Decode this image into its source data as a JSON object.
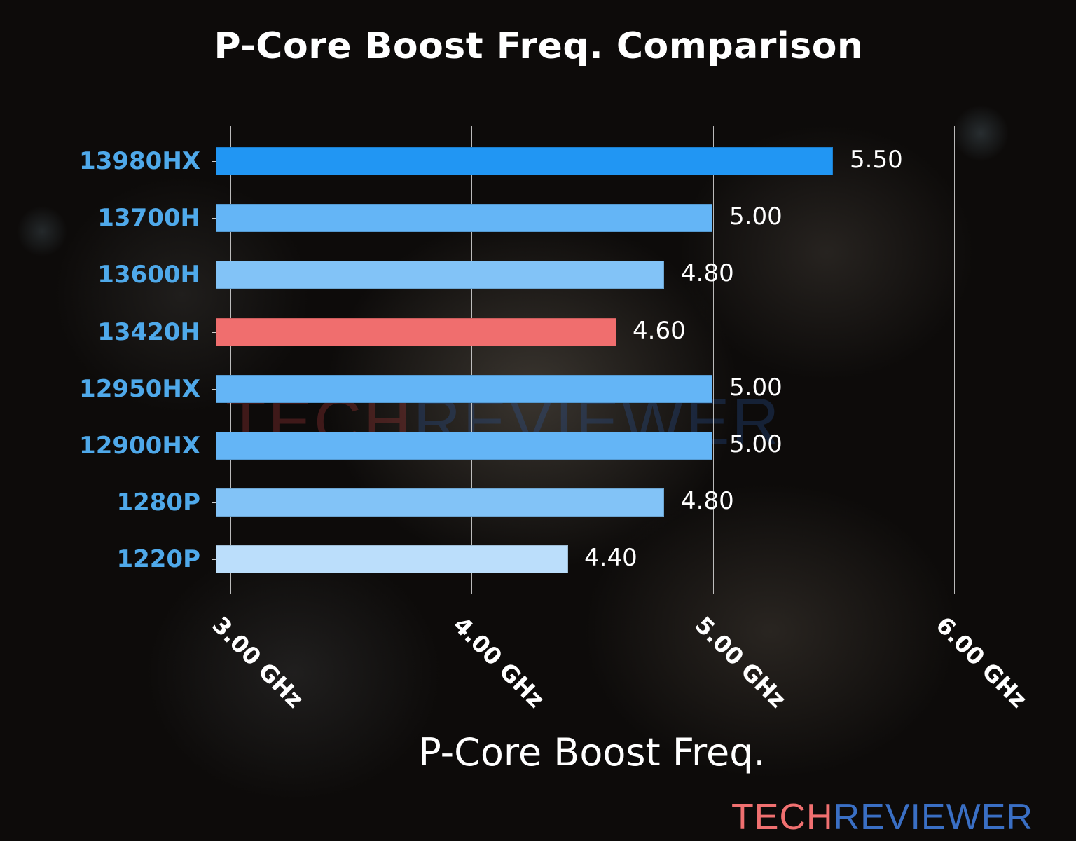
{
  "chart_data": {
    "type": "bar",
    "orientation": "horizontal",
    "title": "P-Core Boost Freq. Comparison",
    "xlabel": "P-Core Boost Freq.",
    "ylabel": "",
    "categories": [
      "13980HX",
      "13700H",
      "13600H",
      "13420H",
      "12950HX",
      "12900HX",
      "1280P",
      "1220P"
    ],
    "values": [
      5.5,
      5.0,
      4.8,
      4.6,
      5.0,
      5.0,
      4.8,
      4.4
    ],
    "value_labels": [
      "5.50",
      "5.00",
      "4.80",
      "4.60",
      "5.00",
      "5.00",
      "4.80",
      "4.40"
    ],
    "bar_colors": [
      "#2196F3",
      "#64B5F6",
      "#82C3F7",
      "#F06E6E",
      "#64B5F6",
      "#64B5F6",
      "#82C3F7",
      "#BBDEFB"
    ],
    "highlight": "13420H",
    "x_ticks": [
      3.0,
      4.0,
      5.0,
      6.0
    ],
    "x_tick_labels": [
      "3.00 GHz",
      "4.00 GHz",
      "5.00 GHz",
      "6.00 GHz"
    ],
    "xlim": [
      2.94,
      6.0
    ],
    "grid": "vertical",
    "legend": null
  },
  "colors": {
    "category_label": "#4FA9EA",
    "text": "#FFFFFF",
    "brand_tech": "#F07070",
    "brand_reviewer": "#3A6FC4"
  },
  "branding": {
    "tech": "TECH",
    "reviewer": "REVIEWER"
  }
}
